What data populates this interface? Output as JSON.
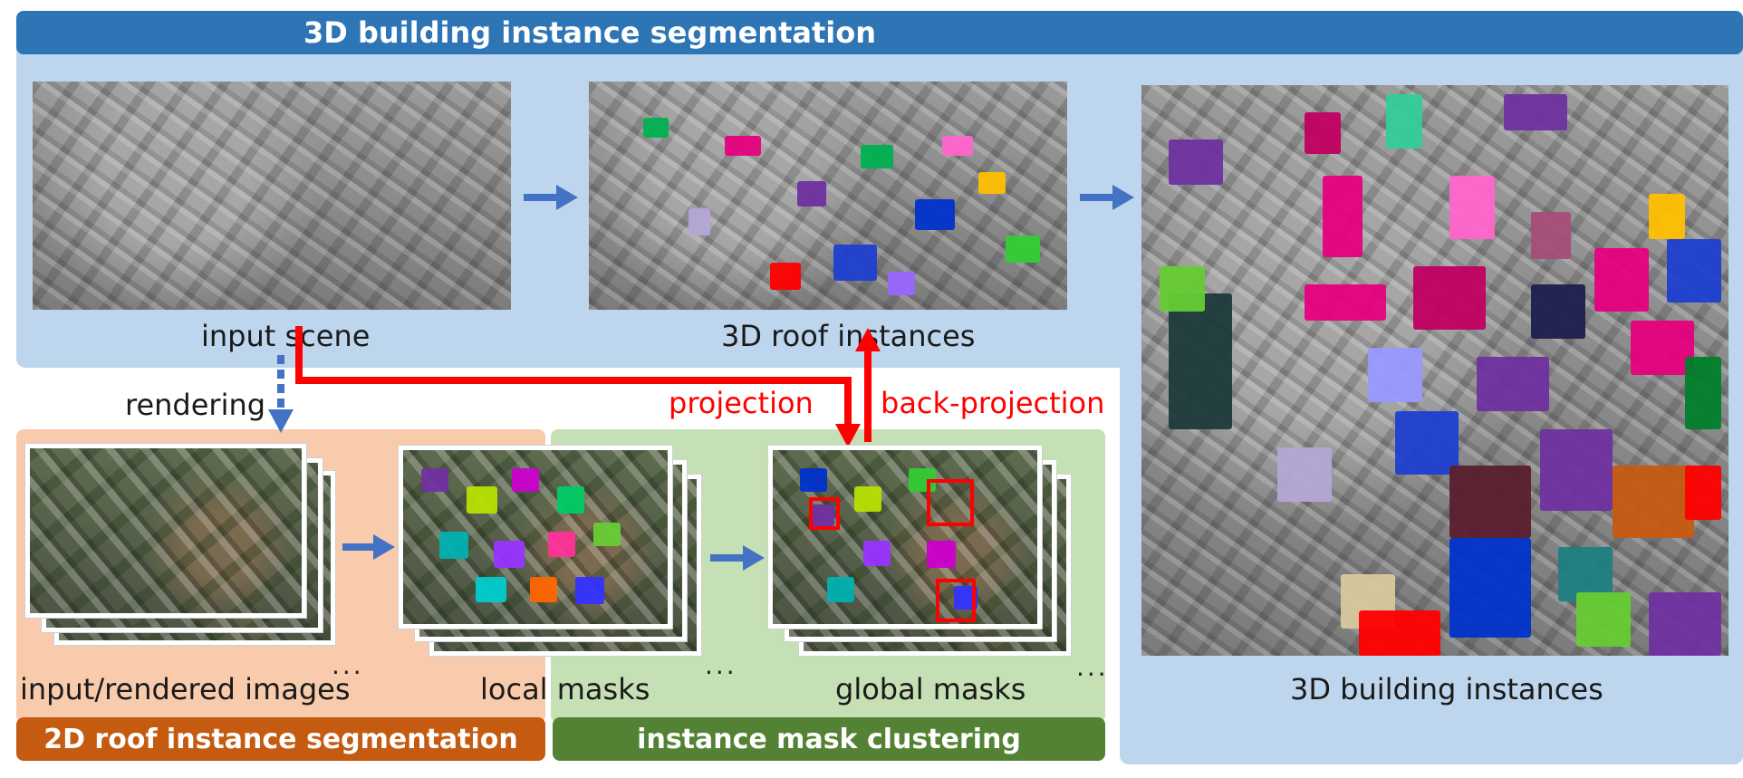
{
  "banners": {
    "top": "3D building instance segmentation",
    "roof2d": "2D roof instance segmentation",
    "clustering": "instance mask clustering"
  },
  "labels": {
    "input_scene": "input scene",
    "roof_instances": "3D roof instances",
    "building_instances": "3D building instances",
    "rendering": "rendering",
    "projection": "projection",
    "back_projection": "back-projection",
    "input_images": "input/rendered images",
    "local_masks": "local masks",
    "global_masks": "global masks"
  },
  "colors": {
    "blue_region": "#bdd6ee",
    "blue_banner": "#2e75b6",
    "orange_region": "#f8cbad",
    "orange_banner": "#c55a11",
    "green_region": "#c5e0b4",
    "green_banner": "#548235",
    "arrow_blue": "#4472c4",
    "arrow_red": "#ff0000"
  },
  "ellipsis": "..."
}
